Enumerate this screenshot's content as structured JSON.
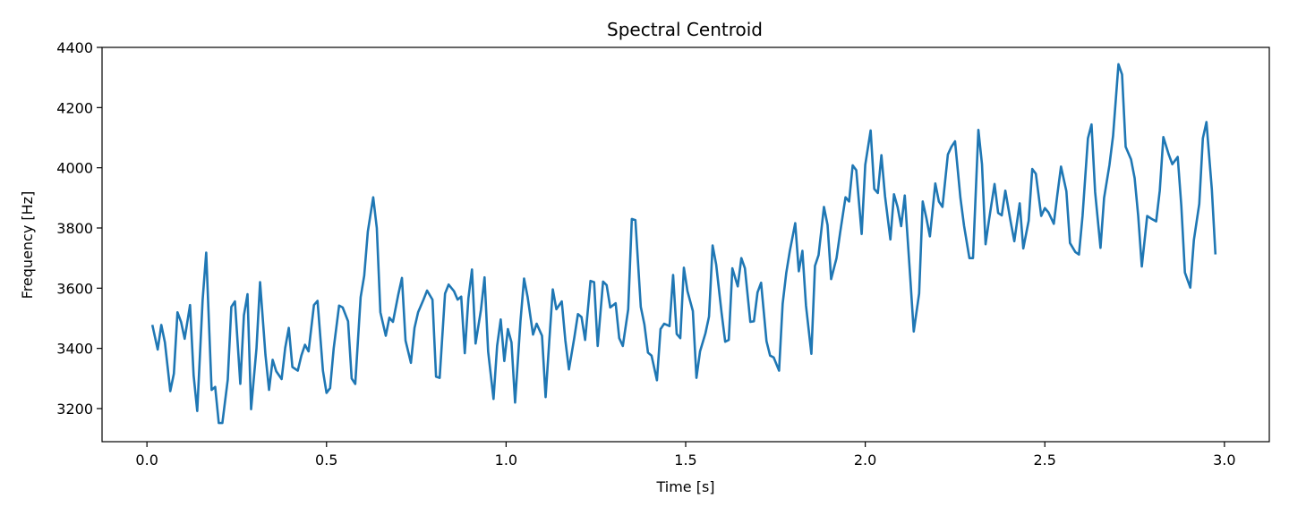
{
  "chart_data": {
    "type": "line",
    "title": "Spectral Centroid",
    "xlabel": "Time [s]",
    "ylabel": "Frequency [Hz]",
    "xlim": [
      -0.125,
      3.125
    ],
    "ylim": [
      3090,
      4400
    ],
    "xticks": [
      0.0,
      0.5,
      1.0,
      1.5,
      2.0,
      2.5,
      3.0
    ],
    "xtick_labels": [
      "0.0",
      "0.5",
      "1.0",
      "1.5",
      "2.0",
      "2.5",
      "3.0"
    ],
    "yticks": [
      3200,
      3400,
      3600,
      3800,
      4000,
      4200,
      4400
    ],
    "ytick_labels": [
      "3200",
      "3400",
      "3600",
      "3800",
      "4000",
      "4200",
      "4400"
    ],
    "grid": false,
    "series": [
      {
        "color": "#1f77b4",
        "points": [
          [
            0.015,
            3478
          ],
          [
            0.03,
            3396
          ],
          [
            0.04,
            3478
          ],
          [
            0.05,
            3420
          ],
          [
            0.065,
            3258
          ],
          [
            0.075,
            3316
          ],
          [
            0.085,
            3520
          ],
          [
            0.095,
            3488
          ],
          [
            0.105,
            3432
          ],
          [
            0.12,
            3544
          ],
          [
            0.13,
            3310
          ],
          [
            0.14,
            3192
          ],
          [
            0.155,
            3560
          ],
          [
            0.165,
            3718
          ],
          [
            0.18,
            3262
          ],
          [
            0.19,
            3272
          ],
          [
            0.2,
            3152
          ],
          [
            0.21,
            3152
          ],
          [
            0.225,
            3296
          ],
          [
            0.235,
            3538
          ],
          [
            0.245,
            3556
          ],
          [
            0.26,
            3282
          ],
          [
            0.27,
            3510
          ],
          [
            0.28,
            3580
          ],
          [
            0.29,
            3198
          ],
          [
            0.305,
            3400
          ],
          [
            0.315,
            3620
          ],
          [
            0.33,
            3378
          ],
          [
            0.34,
            3262
          ],
          [
            0.35,
            3362
          ],
          [
            0.36,
            3324
          ],
          [
            0.375,
            3298
          ],
          [
            0.385,
            3402
          ],
          [
            0.395,
            3468
          ],
          [
            0.405,
            3338
          ],
          [
            0.42,
            3326
          ],
          [
            0.43,
            3376
          ],
          [
            0.44,
            3412
          ],
          [
            0.45,
            3390
          ],
          [
            0.465,
            3544
          ],
          [
            0.475,
            3558
          ],
          [
            0.49,
            3326
          ],
          [
            0.5,
            3252
          ],
          [
            0.51,
            3268
          ],
          [
            0.52,
            3400
          ],
          [
            0.535,
            3542
          ],
          [
            0.545,
            3536
          ],
          [
            0.56,
            3490
          ],
          [
            0.57,
            3300
          ],
          [
            0.58,
            3282
          ],
          [
            0.595,
            3570
          ],
          [
            0.605,
            3642
          ],
          [
            0.615,
            3788
          ],
          [
            0.63,
            3902
          ],
          [
            0.64,
            3800
          ],
          [
            0.65,
            3520
          ],
          [
            0.665,
            3442
          ],
          [
            0.675,
            3502
          ],
          [
            0.685,
            3488
          ],
          [
            0.7,
            3580
          ],
          [
            0.71,
            3634
          ],
          [
            0.72,
            3426
          ],
          [
            0.735,
            3352
          ],
          [
            0.745,
            3468
          ],
          [
            0.755,
            3520
          ],
          [
            0.77,
            3562
          ],
          [
            0.78,
            3592
          ],
          [
            0.795,
            3562
          ],
          [
            0.805,
            3306
          ],
          [
            0.815,
            3302
          ],
          [
            0.83,
            3582
          ],
          [
            0.84,
            3612
          ],
          [
            0.855,
            3590
          ],
          [
            0.865,
            3562
          ],
          [
            0.875,
            3572
          ],
          [
            0.885,
            3384
          ],
          [
            0.895,
            3566
          ],
          [
            0.905,
            3662
          ],
          [
            0.915,
            3416
          ],
          [
            0.93,
            3528
          ],
          [
            0.94,
            3636
          ],
          [
            0.95,
            3390
          ],
          [
            0.965,
            3232
          ],
          [
            0.975,
            3408
          ],
          [
            0.985,
            3496
          ],
          [
            0.995,
            3358
          ],
          [
            1.005,
            3464
          ],
          [
            1.015,
            3420
          ],
          [
            1.025,
            3220
          ],
          [
            1.04,
            3490
          ],
          [
            1.05,
            3632
          ],
          [
            1.06,
            3570
          ],
          [
            1.075,
            3446
          ],
          [
            1.085,
            3482
          ],
          [
            1.1,
            3442
          ],
          [
            1.11,
            3238
          ],
          [
            1.12,
            3420
          ],
          [
            1.13,
            3596
          ],
          [
            1.14,
            3530
          ],
          [
            1.155,
            3556
          ],
          [
            1.165,
            3426
          ],
          [
            1.175,
            3330
          ],
          [
            1.19,
            3436
          ],
          [
            1.2,
            3514
          ],
          [
            1.21,
            3504
          ],
          [
            1.22,
            3428
          ],
          [
            1.235,
            3624
          ],
          [
            1.245,
            3620
          ],
          [
            1.255,
            3408
          ],
          [
            1.27,
            3622
          ],
          [
            1.28,
            3610
          ],
          [
            1.29,
            3536
          ],
          [
            1.305,
            3550
          ],
          [
            1.315,
            3434
          ],
          [
            1.325,
            3408
          ],
          [
            1.34,
            3530
          ],
          [
            1.35,
            3830
          ],
          [
            1.36,
            3826
          ],
          [
            1.375,
            3538
          ],
          [
            1.385,
            3480
          ],
          [
            1.395,
            3386
          ],
          [
            1.405,
            3376
          ],
          [
            1.42,
            3294
          ],
          [
            1.43,
            3464
          ],
          [
            1.44,
            3482
          ],
          [
            1.455,
            3474
          ],
          [
            1.465,
            3644
          ],
          [
            1.475,
            3448
          ],
          [
            1.485,
            3434
          ],
          [
            1.495,
            3668
          ],
          [
            1.505,
            3590
          ],
          [
            1.52,
            3524
          ],
          [
            1.53,
            3302
          ],
          [
            1.54,
            3390
          ],
          [
            1.555,
            3450
          ],
          [
            1.565,
            3506
          ],
          [
            1.575,
            3742
          ],
          [
            1.585,
            3678
          ],
          [
            1.6,
            3518
          ],
          [
            1.61,
            3422
          ],
          [
            1.62,
            3428
          ],
          [
            1.63,
            3666
          ],
          [
            1.645,
            3606
          ],
          [
            1.655,
            3700
          ],
          [
            1.665,
            3666
          ],
          [
            1.68,
            3488
          ],
          [
            1.69,
            3490
          ],
          [
            1.7,
            3586
          ],
          [
            1.71,
            3618
          ],
          [
            1.725,
            3424
          ],
          [
            1.735,
            3376
          ],
          [
            1.745,
            3370
          ],
          [
            1.76,
            3326
          ],
          [
            1.77,
            3548
          ],
          [
            1.78,
            3650
          ],
          [
            1.79,
            3724
          ],
          [
            1.805,
            3816
          ],
          [
            1.815,
            3656
          ],
          [
            1.825,
            3724
          ],
          [
            1.835,
            3542
          ],
          [
            1.85,
            3382
          ],
          [
            1.86,
            3674
          ],
          [
            1.87,
            3710
          ],
          [
            1.885,
            3870
          ],
          [
            1.895,
            3810
          ],
          [
            1.905,
            3630
          ],
          [
            1.92,
            3700
          ],
          [
            1.93,
            3784
          ],
          [
            1.945,
            3902
          ],
          [
            1.955,
            3888
          ],
          [
            1.965,
            4008
          ],
          [
            1.975,
            3992
          ],
          [
            1.99,
            3780
          ],
          [
            2.0,
            4010
          ],
          [
            2.015,
            4124
          ],
          [
            2.025,
            3930
          ],
          [
            2.035,
            3916
          ],
          [
            2.045,
            4042
          ],
          [
            2.055,
            3906
          ],
          [
            2.07,
            3762
          ],
          [
            2.08,
            3912
          ],
          [
            2.09,
            3870
          ],
          [
            2.1,
            3806
          ],
          [
            2.11,
            3908
          ],
          [
            2.125,
            3640
          ],
          [
            2.135,
            3456
          ],
          [
            2.15,
            3582
          ],
          [
            2.16,
            3888
          ],
          [
            2.17,
            3834
          ],
          [
            2.18,
            3772
          ],
          [
            2.195,
            3948
          ],
          [
            2.205,
            3888
          ],
          [
            2.215,
            3870
          ],
          [
            2.23,
            4044
          ],
          [
            2.24,
            4070
          ],
          [
            2.25,
            4088
          ],
          [
            2.265,
            3900
          ],
          [
            2.275,
            3808
          ],
          [
            2.29,
            3700
          ],
          [
            2.3,
            3700
          ],
          [
            2.315,
            4126
          ],
          [
            2.325,
            4012
          ],
          [
            2.335,
            3746
          ],
          [
            2.345,
            3830
          ],
          [
            2.36,
            3946
          ],
          [
            2.37,
            3850
          ],
          [
            2.38,
            3842
          ],
          [
            2.39,
            3924
          ],
          [
            2.405,
            3820
          ],
          [
            2.415,
            3756
          ],
          [
            2.43,
            3882
          ],
          [
            2.44,
            3732
          ],
          [
            2.455,
            3824
          ],
          [
            2.465,
            3996
          ],
          [
            2.475,
            3980
          ],
          [
            2.49,
            3840
          ],
          [
            2.5,
            3866
          ],
          [
            2.51,
            3852
          ],
          [
            2.525,
            3814
          ],
          [
            2.535,
            3912
          ],
          [
            2.545,
            4004
          ],
          [
            2.56,
            3922
          ],
          [
            2.57,
            3750
          ],
          [
            2.585,
            3720
          ],
          [
            2.595,
            3712
          ],
          [
            2.605,
            3840
          ],
          [
            2.62,
            4098
          ],
          [
            2.63,
            4144
          ],
          [
            2.64,
            3920
          ],
          [
            2.655,
            3734
          ],
          [
            2.665,
            3900
          ],
          [
            2.68,
            4010
          ],
          [
            2.69,
            4106
          ],
          [
            2.705,
            4344
          ],
          [
            2.715,
            4310
          ],
          [
            2.725,
            4070
          ],
          [
            2.74,
            4028
          ],
          [
            2.75,
            3966
          ],
          [
            2.76,
            3840
          ],
          [
            2.77,
            3672
          ],
          [
            2.785,
            3840
          ],
          [
            2.795,
            3832
          ],
          [
            2.81,
            3822
          ],
          [
            2.82,
            3924
          ],
          [
            2.83,
            4102
          ],
          [
            2.845,
            4044
          ],
          [
            2.855,
            4012
          ],
          [
            2.87,
            4036
          ],
          [
            2.88,
            3874
          ],
          [
            2.89,
            3652
          ],
          [
            2.905,
            3602
          ],
          [
            2.915,
            3760
          ],
          [
            2.93,
            3880
          ],
          [
            2.94,
            4098
          ],
          [
            2.95,
            4152
          ],
          [
            2.965,
            3928
          ],
          [
            2.975,
            3712
          ]
        ]
      }
    ]
  }
}
